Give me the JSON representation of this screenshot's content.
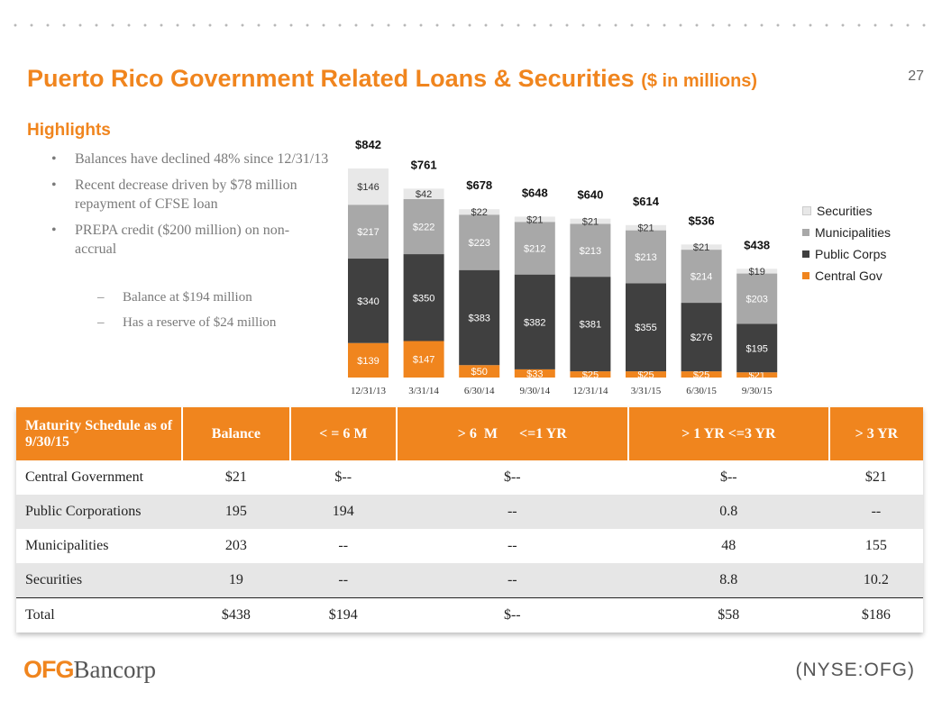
{
  "title": "Puerto Rico Government Related Loans & Securities",
  "title_sub": "($ in millions)",
  "page_number": "27",
  "highlights": {
    "heading": "Highlights",
    "bullets": [
      "Balances have declined 48% since 12/31/13",
      "Recent decrease driven by $78 million repayment of CFSE loan",
      "PREPA credit ($200 million) on non-accrual"
    ],
    "sub_bullets": [
      "Balance at $194 million",
      "Has a reserve of $24 million"
    ]
  },
  "chart_data": {
    "type": "bar",
    "stacked": true,
    "categories": [
      "12/31/13",
      "3/31/14",
      "6/30/14",
      "9/30/14",
      "12/31/14",
      "3/31/15",
      "6/30/15",
      "9/30/15"
    ],
    "totals": [
      "$842",
      "$761",
      "$678",
      "$648",
      "$640",
      "$614",
      "$536",
      "$438"
    ],
    "series": [
      {
        "name": "Central Gov",
        "color": "#f0851e",
        "values": [
          139,
          147,
          50,
          33,
          25,
          25,
          25,
          21
        ],
        "labels": [
          "$139",
          "$147",
          "$50",
          "$33",
          "$25",
          "$25",
          "$25",
          "$21"
        ]
      },
      {
        "name": "Public Corps",
        "color": "#404040",
        "values": [
          340,
          350,
          383,
          382,
          381,
          355,
          276,
          195
        ],
        "labels": [
          "$340",
          "$350",
          "$383",
          "$382",
          "$381",
          "$355",
          "$276",
          "$195"
        ]
      },
      {
        "name": "Municipalities",
        "color": "#a8a8a8",
        "values": [
          217,
          222,
          223,
          212,
          213,
          213,
          214,
          203
        ],
        "labels": [
          "$217",
          "$222",
          "$223",
          "$212",
          "$213",
          "$213",
          "$214",
          "$203"
        ]
      },
      {
        "name": "Securities",
        "color": "#e8e8e8",
        "values": [
          146,
          42,
          22,
          21,
          21,
          21,
          21,
          19
        ],
        "labels": [
          "$146",
          "$42",
          "$22",
          "$21",
          "$21",
          "$21",
          "$21",
          "$19"
        ]
      }
    ],
    "legend_order": [
      "Securities",
      "Municipalities",
      "Public Corps",
      "Central Gov"
    ],
    "legend_position": "right"
  },
  "table": {
    "headers": [
      "Maturity Schedule as of 9/30/15",
      "Balance",
      "< = 6 M",
      "> 6  M      <=1 YR",
      "> 1 YR <=3 YR",
      "> 3 YR"
    ],
    "rows": [
      [
        "Central Government",
        "$21",
        "$--",
        "$--",
        "$--",
        "$21"
      ],
      [
        "Public Corporations",
        "195",
        "194",
        "--",
        "0.8",
        "--"
      ],
      [
        "Municipalities",
        "203",
        "--",
        "--",
        "48",
        "155"
      ],
      [
        "Securities",
        "19",
        "--",
        "--",
        "8.8",
        "10.2"
      ],
      [
        "Total",
        "$438",
        "$194",
        "$--",
        "$58",
        "$186"
      ]
    ]
  },
  "footer": {
    "logo_ofg": "OFG",
    "logo_bancorp": "Bancorp",
    "ticker": "(NYSE:OFG)"
  }
}
